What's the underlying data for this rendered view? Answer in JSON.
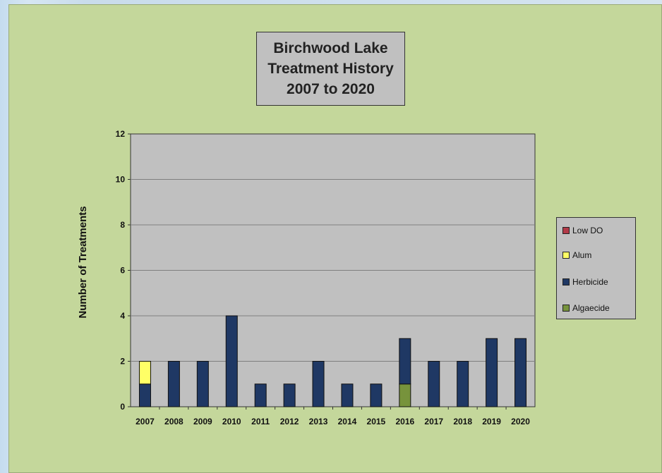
{
  "chart_data": {
    "type": "bar",
    "stacked": true,
    "title_lines": [
      "Birchwood Lake",
      "Treatment History",
      "2007 to 2020"
    ],
    "ylabel": "Number of Treatments",
    "xlabel": "",
    "ylim": [
      0,
      12
    ],
    "yticks": [
      0,
      2,
      4,
      6,
      8,
      10,
      12
    ],
    "grid": true,
    "legend_position": "right",
    "categories": [
      "2007",
      "2008",
      "2009",
      "2010",
      "2011",
      "2012",
      "2013",
      "2014",
      "2015",
      "2016",
      "2017",
      "2018",
      "2019",
      "2020"
    ],
    "series": [
      {
        "name": "Algaecide",
        "color": "#77933c",
        "values": [
          0,
          0,
          0,
          0,
          0,
          0,
          0,
          0,
          0,
          1,
          0,
          0,
          0,
          0
        ]
      },
      {
        "name": "Herbicide",
        "color": "#1f3864",
        "values": [
          1,
          2,
          2,
          4,
          1,
          1,
          2,
          1,
          1,
          2,
          2,
          2,
          3,
          3
        ]
      },
      {
        "name": "Alum",
        "color": "#ffff66",
        "values": [
          1,
          0,
          0,
          0,
          0,
          0,
          0,
          0,
          0,
          0,
          0,
          0,
          0,
          0
        ]
      },
      {
        "name": "Low DO",
        "color": "#b23a48",
        "values": [
          0,
          0,
          0,
          0,
          0,
          0,
          0,
          0,
          0,
          0,
          0,
          0,
          0,
          0
        ]
      }
    ],
    "legend_order": [
      "Low DO",
      "Alum",
      "Herbicide",
      "Algaecide"
    ]
  }
}
